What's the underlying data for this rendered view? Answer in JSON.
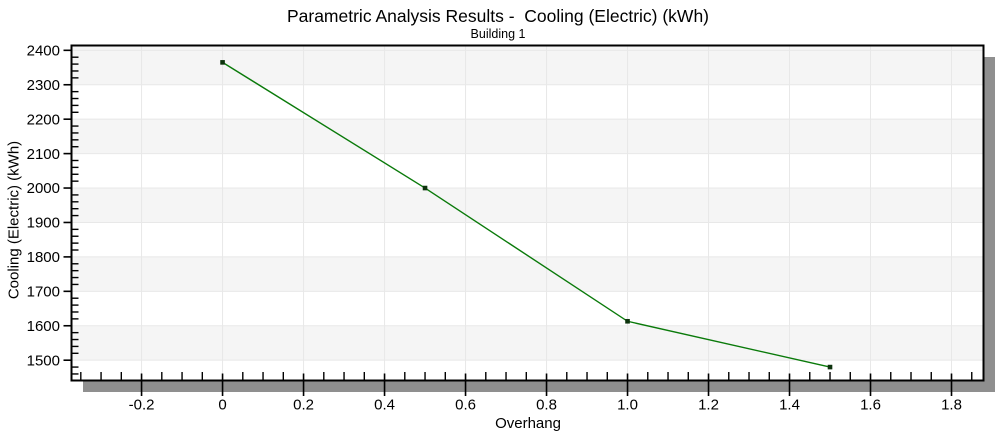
{
  "chart": {
    "title": "Parametric Analysis Results -  Cooling (Electric) (kWh)",
    "subtitle": "Building 1",
    "xlabel": "Overhang",
    "ylabel": "Cooling (Electric) (kWh)"
  },
  "chart_data": {
    "type": "line",
    "title": "Parametric Analysis Results -  Cooling (Electric) (kWh)",
    "subtitle": "Building 1",
    "xlabel": "Overhang",
    "ylabel": "Cooling (Electric) (kWh)",
    "series": [
      {
        "name": "Building 1",
        "x": [
          0,
          0.5,
          1.0,
          1.5
        ],
        "y": [
          2365,
          2000,
          1613,
          1480
        ]
      }
    ],
    "xlim": [
      -0.373,
      1.879
    ],
    "ylim": [
      1441,
      2414
    ],
    "x_ticks": {
      "values": [
        -0.2,
        0,
        0.2,
        0.4,
        0.6,
        0.8,
        1.0,
        1.2,
        1.4,
        1.6,
        1.8
      ],
      "labels": [
        "-0.2",
        "0",
        "0.2",
        "0.4",
        "0.6",
        "0.8",
        "1.0",
        "1.2",
        "1.4",
        "1.6",
        "1.8"
      ],
      "minor_step": 0.05
    },
    "y_ticks": {
      "values": [
        1500,
        1600,
        1700,
        1800,
        1900,
        2000,
        2100,
        2200,
        2300,
        2400
      ],
      "labels": [
        "1500",
        "1600",
        "1700",
        "1800",
        "1900",
        "2000",
        "2100",
        "2200",
        "2300",
        "2400"
      ],
      "minor_step": 20
    },
    "grid": true,
    "legend": "none",
    "alternating_bands": true,
    "colors": {
      "line": "#0a7a0a",
      "marker": "#0d330d",
      "band": "#f5f5f5",
      "grid": "#e8e8e8",
      "shadow": "#8f8f8f",
      "frame": "#000000",
      "text": "#000000",
      "background": "#ffffff"
    }
  }
}
